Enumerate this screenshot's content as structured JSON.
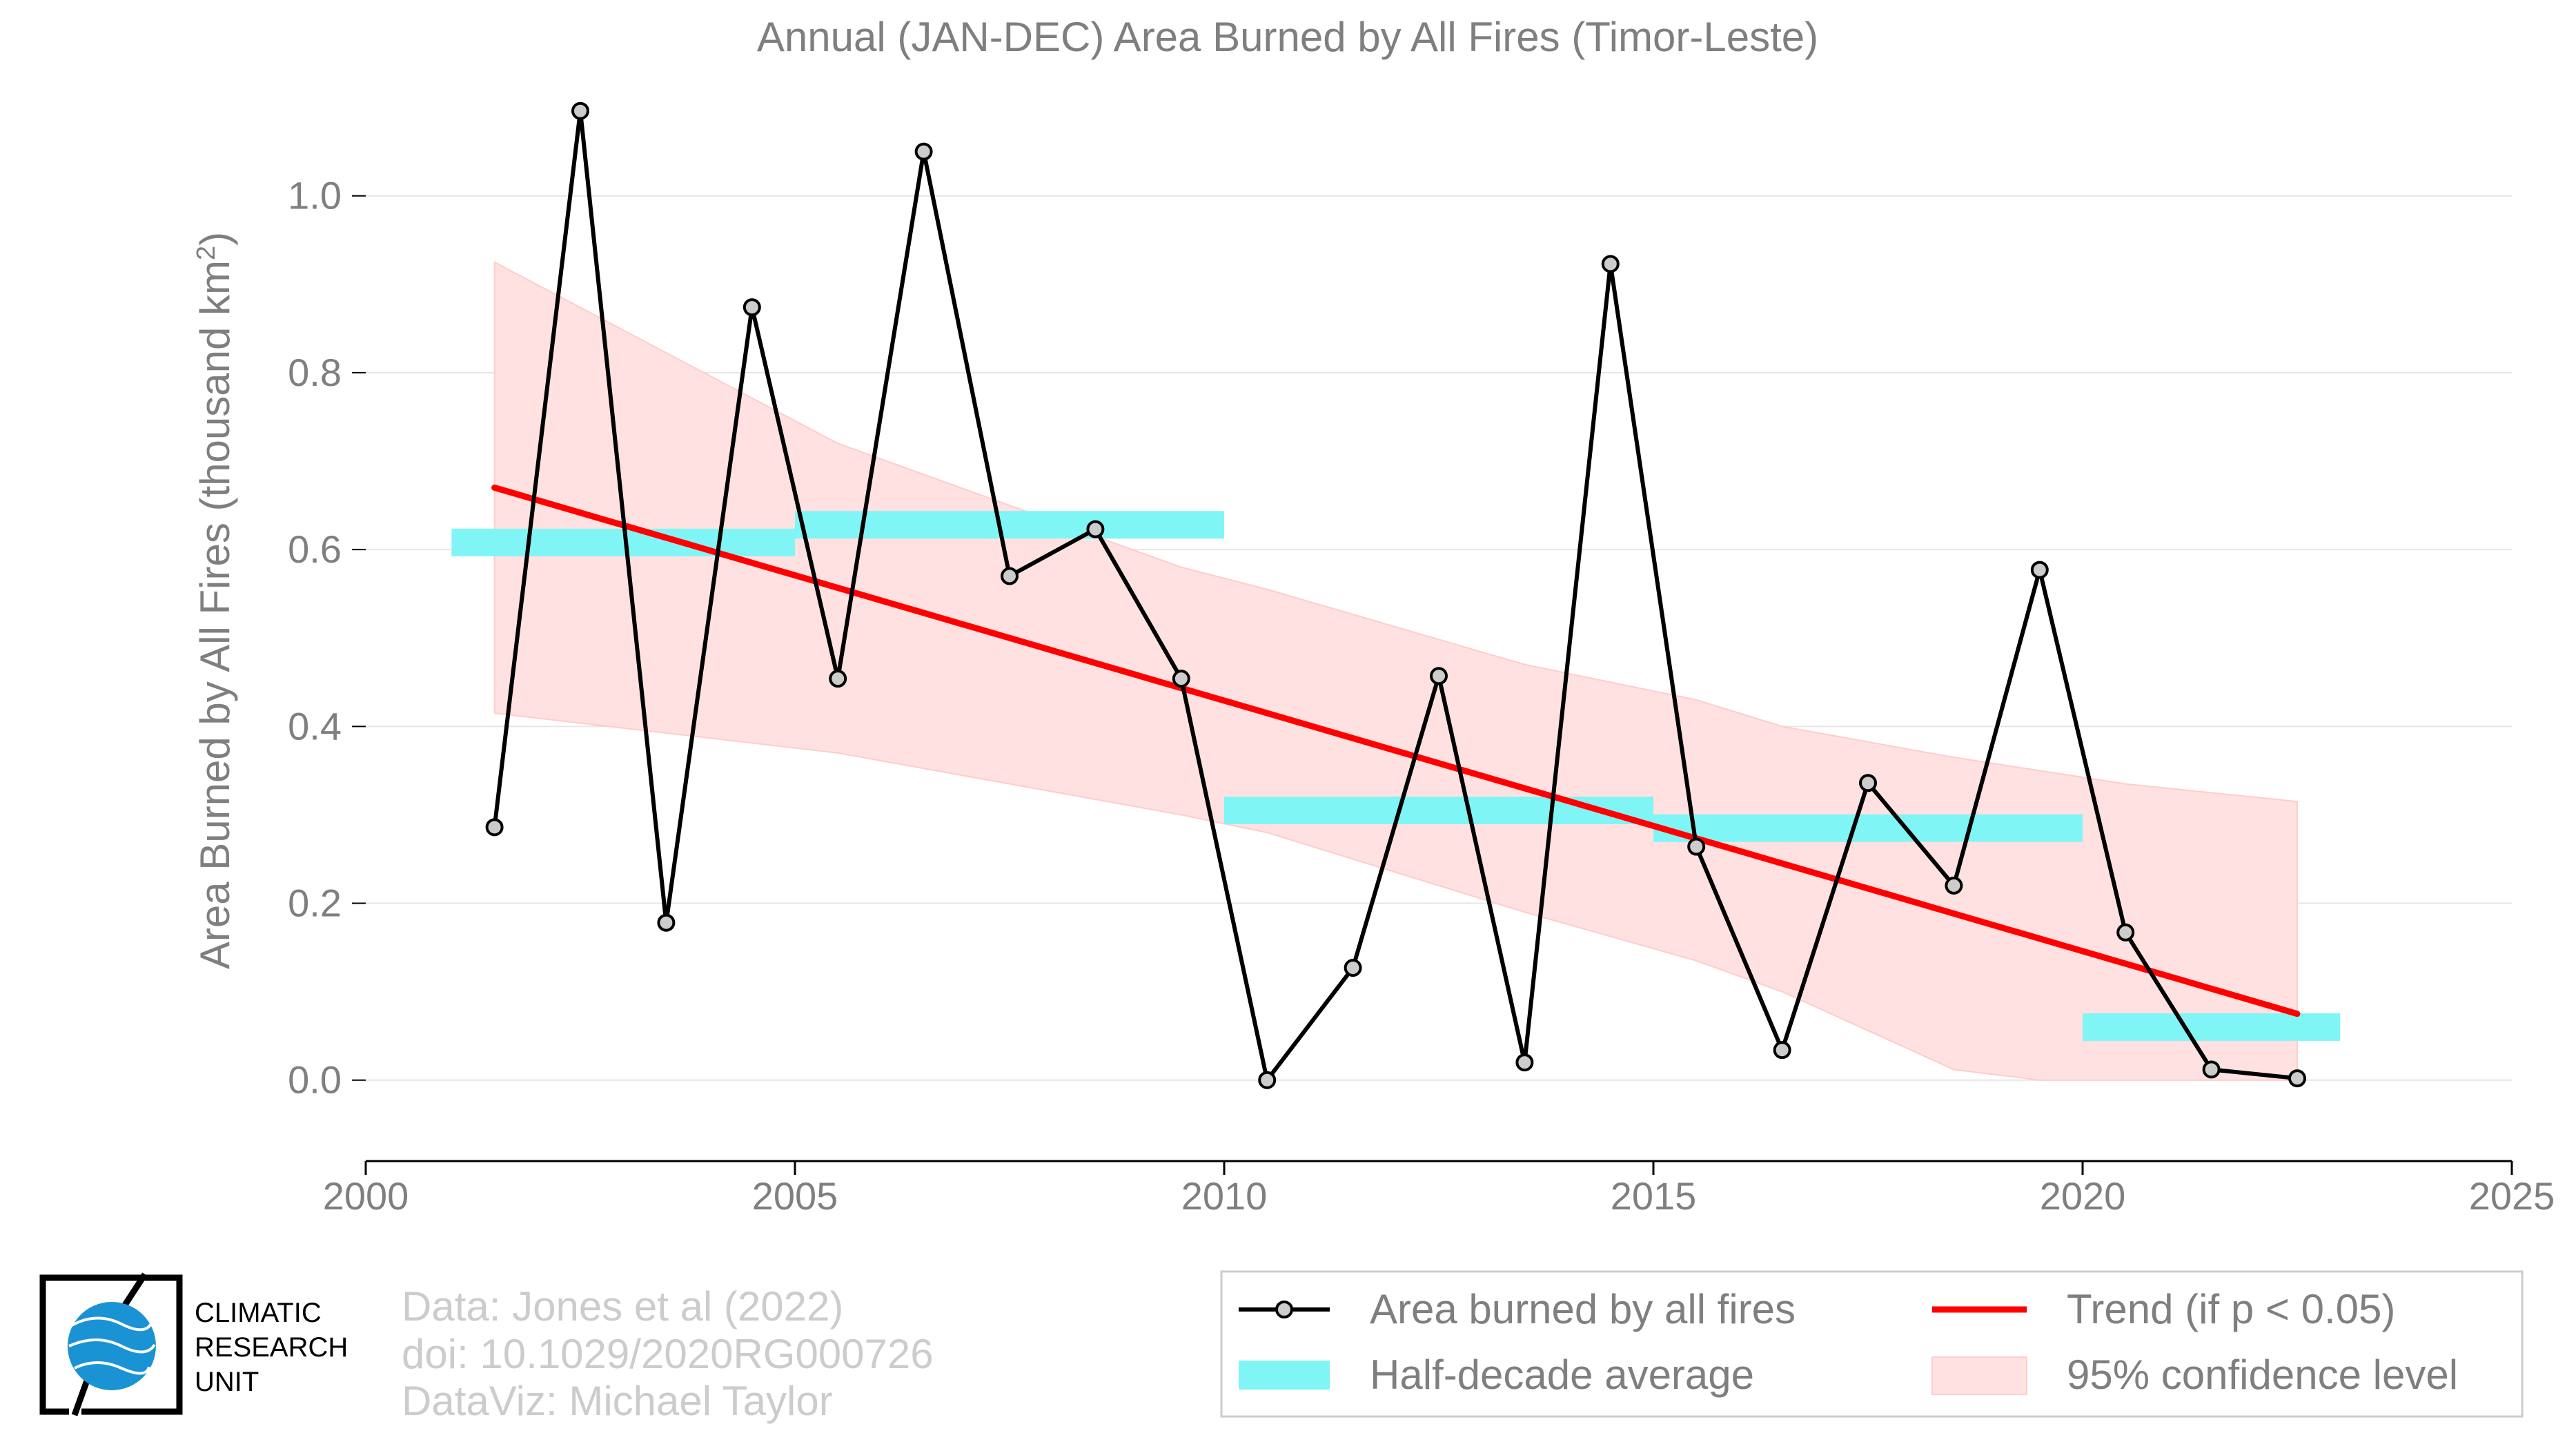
{
  "chart_data": {
    "type": "line",
    "title": "Annual (JAN-DEC) Area Burned by All Fires (Timor-Leste)",
    "ylabel_main": "Area Burned by All Fires (thousand km",
    "ylabel_sup": "2",
    "ylabel_end": ")",
    "xlim": [
      2000,
      2025
    ],
    "ylim": [
      -0.09,
      1.12
    ],
    "xticks": [
      2000,
      2005,
      2010,
      2015,
      2020,
      2025
    ],
    "xtick_labels": [
      "2000",
      "2005",
      "2010",
      "2015",
      "2020",
      "2025"
    ],
    "yticks": [
      0.0,
      0.2,
      0.4,
      0.6,
      0.8,
      1.0
    ],
    "ytick_labels": [
      "0.0",
      "0.2",
      "0.4",
      "0.6",
      "0.8",
      "1.0"
    ],
    "grid": "horizontal",
    "legend_position": "bottom-right",
    "series": [
      {
        "name": "Area burned by all fires",
        "type": "line-markers",
        "color": "#000000",
        "marker_fill": "#cccccc",
        "x": [
          2001.5,
          2002.5,
          2003.5,
          2004.5,
          2005.5,
          2006.5,
          2007.5,
          2008.5,
          2009.5,
          2010.5,
          2011.5,
          2012.5,
          2013.5,
          2014.5,
          2015.5,
          2016.5,
          2017.5,
          2018.5,
          2019.5,
          2020.5,
          2021.5,
          2022.5
        ],
        "y": [
          0.286,
          1.096,
          0.178,
          0.874,
          0.454,
          1.05,
          0.57,
          0.623,
          0.454,
          0.0,
          0.127,
          0.457,
          0.02,
          0.923,
          0.264,
          0.034,
          0.336,
          0.22,
          0.577,
          0.167,
          0.012,
          0.002
        ]
      },
      {
        "name": "Half-decade average",
        "type": "segments",
        "color": "#80f5f5",
        "x_start": [
          2001,
          2005,
          2010,
          2015,
          2020
        ],
        "x_end": [
          2005,
          2010,
          2015,
          2020,
          2023
        ],
        "y": [
          0.608,
          0.628,
          0.305,
          0.285,
          0.06
        ]
      },
      {
        "name": "Trend (if p < 0.05)",
        "type": "line",
        "color": "#ff0000",
        "x": [
          2001.5,
          2022.5
        ],
        "y": [
          0.67,
          0.075
        ]
      },
      {
        "name": "95% confidence level",
        "type": "band",
        "color": "#ffe1e1",
        "x": [
          2001.5,
          2005.5,
          2009.5,
          2010.5,
          2013.5,
          2015.5,
          2016.5,
          2018.5,
          2019.5,
          2020.5,
          2022.5
        ],
        "upper": [
          0.925,
          0.72,
          0.58,
          0.555,
          0.47,
          0.43,
          0.4,
          0.365,
          0.35,
          0.335,
          0.315
        ],
        "lower": [
          0.415,
          0.37,
          0.3,
          0.28,
          0.19,
          0.135,
          0.1,
          0.012,
          0.0,
          0.0,
          0.0
        ]
      }
    ],
    "credits": [
      "Data: Jones et al (2022)",
      "doi: 10.1029/2020RG000726",
      "DataViz: Michael Taylor"
    ],
    "logo_text": [
      "CLIMATIC",
      "RESEARCH",
      "UNIT"
    ]
  }
}
